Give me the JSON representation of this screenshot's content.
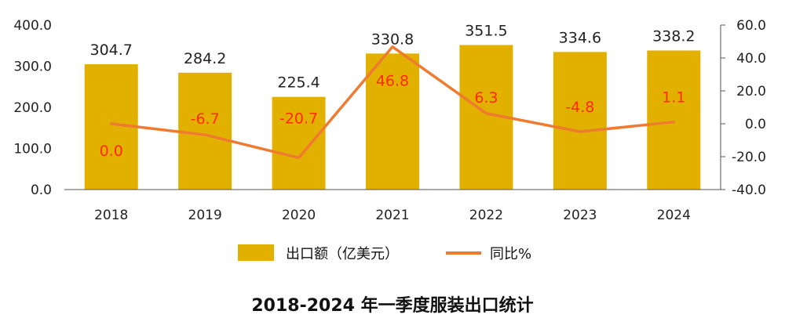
{
  "chart_data": {
    "type": "bar",
    "categories": [
      "2018",
      "2019",
      "2020",
      "2021",
      "2022",
      "2023",
      "2024"
    ],
    "series": [
      {
        "name": "出口额（亿美元）",
        "type": "bar",
        "axis": "left",
        "values": [
          304.7,
          284.2,
          225.4,
          330.8,
          351.5,
          334.6,
          338.2
        ],
        "value_labels": [
          "304.7",
          "284.2",
          "225.4",
          "330.8",
          "351.5",
          "334.6",
          "338.2"
        ]
      },
      {
        "name": "同比%",
        "type": "line",
        "axis": "right",
        "values": [
          0.0,
          -6.7,
          -20.7,
          46.8,
          6.3,
          -4.8,
          1.1
        ],
        "value_labels": [
          "0.0",
          "-6.7",
          "-20.7",
          "46.8",
          "6.3",
          "-4.8",
          "1.1"
        ]
      }
    ],
    "y_left": {
      "range": [
        0,
        400
      ],
      "ticks": [
        "0.0",
        "100.0",
        "200.0",
        "300.0",
        "400.0"
      ]
    },
    "y_right": {
      "range": [
        -40,
        60
      ],
      "ticks": [
        "-40.0",
        "-20.0",
        "0.0",
        "20.0",
        "40.0",
        "60.0"
      ]
    },
    "grid": false,
    "legend_position": "bottom",
    "colors": {
      "bar": "#e2b100",
      "line": "#ee7b30",
      "yoy_label": "#ff2a00",
      "axis": "#555555"
    }
  },
  "caption": "2018-2024 年一季度服装出口统计"
}
